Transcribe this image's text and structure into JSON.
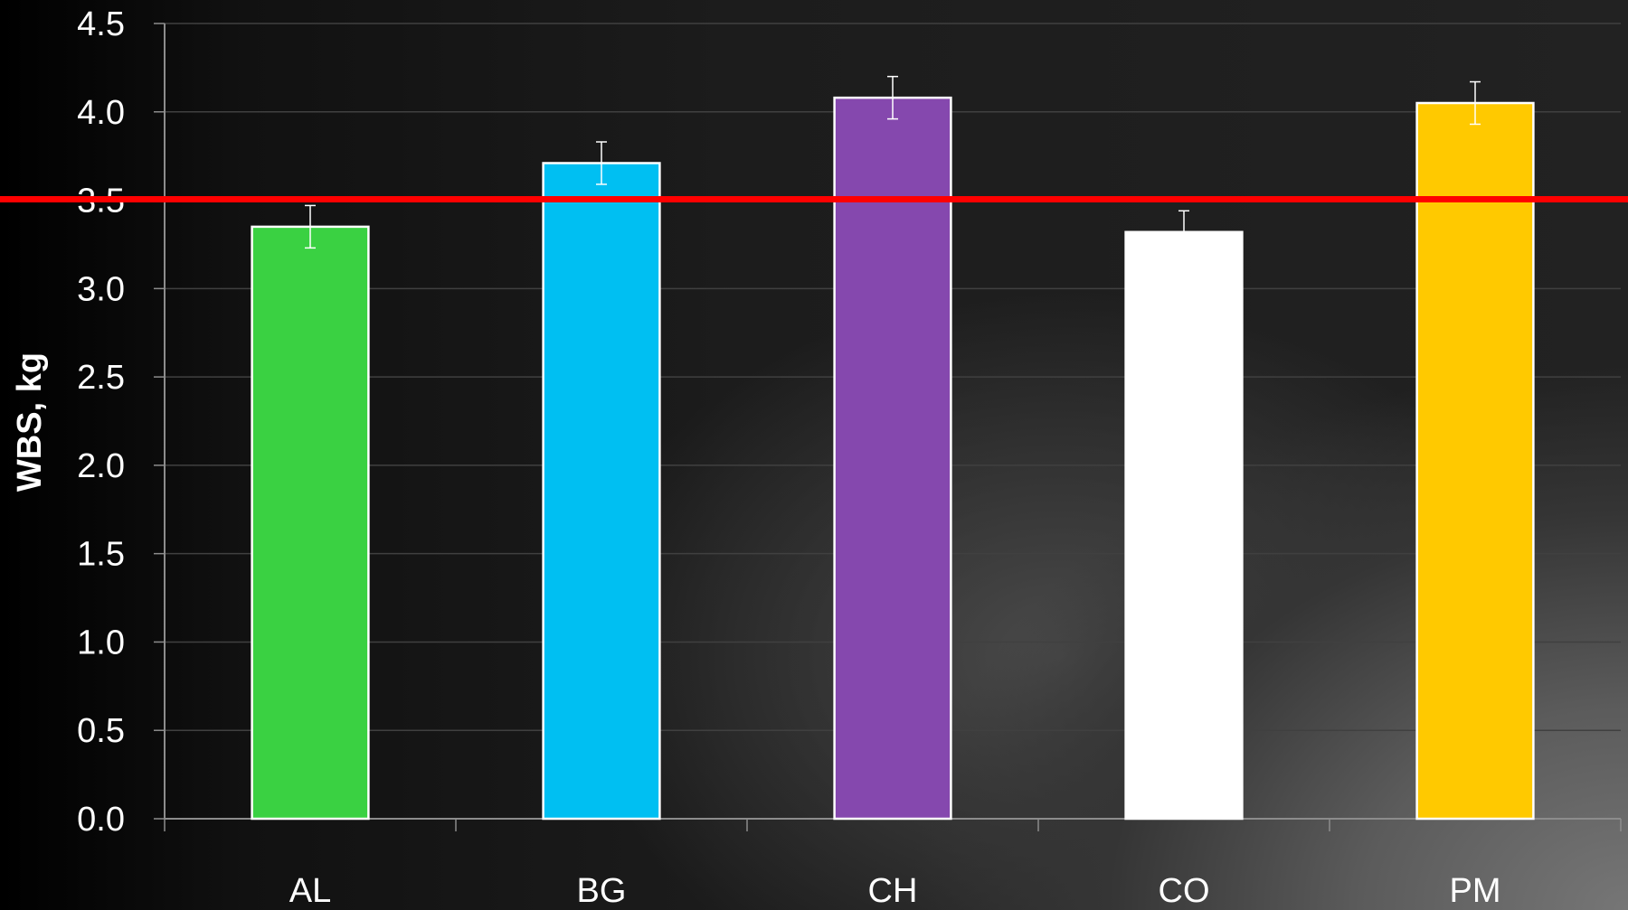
{
  "chart_data": {
    "type": "bar",
    "title": "",
    "xlabel": "",
    "ylabel": "WBS, kg",
    "ylim": [
      0,
      4.5
    ],
    "yticks": [
      "0.0",
      "0.5",
      "1.0",
      "1.5",
      "2.0",
      "2.5",
      "3.0",
      "3.5",
      "4.0",
      "4.5"
    ],
    "categories": [
      "AL",
      "BG",
      "CH",
      "CO",
      "PM"
    ],
    "values": [
      3.35,
      3.71,
      4.08,
      3.32,
      4.05
    ],
    "errors": [
      0.12,
      0.12,
      0.12,
      0.12,
      0.12
    ],
    "bar_colors": [
      "#3ad142",
      "#00bff2",
      "#8548ae",
      "#ffffff",
      "#ffc900"
    ],
    "bar_outline_color": "#ffffff",
    "error_bar_color": "#ffffff",
    "gridlines": true,
    "gridline_color": "#404040",
    "axis_color": "#8c8c8c",
    "reference_line": {
      "value": 3.5,
      "color": "#ff0000"
    }
  }
}
